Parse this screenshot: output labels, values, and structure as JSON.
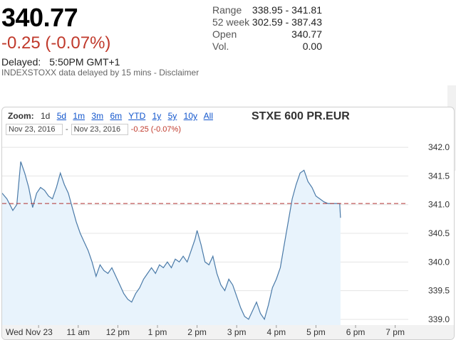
{
  "quote": {
    "price": "340.77",
    "change": "-0.25 (-0.07%)",
    "delayed_label": "Delayed:",
    "delayed_time": "5:50PM GMT+1",
    "source_note": "INDEXSTOXX data delayed by 15 mins - Disclaimer"
  },
  "stats": [
    {
      "label": "Range",
      "value": "338.95 - 341.81"
    },
    {
      "label": "52 week",
      "value": "302.59 - 387.43"
    },
    {
      "label": "Open",
      "value": "340.77"
    },
    {
      "label": "Vol.",
      "value": "0.00"
    }
  ],
  "chart": {
    "title": "STXE 600 PR.EUR",
    "zoom_label": "Zoom:",
    "zoom_options": [
      "1d",
      "5d",
      "1m",
      "3m",
      "6m",
      "YTD",
      "1y",
      "5y",
      "10y",
      "All"
    ],
    "zoom_selected": "1d",
    "start_date": "Nov 23, 2016",
    "end_date": "Nov 23, 2016",
    "range_change": "-0.25 (-0.07%)",
    "colors": {
      "line": "#4a7aa8",
      "fill": "#e8f3fc",
      "ref_line": "#b03030",
      "grid": "#e4e4e4"
    }
  },
  "chart_data": {
    "type": "area",
    "title": "STXE 600 PR.EUR",
    "xlabel": "",
    "ylabel": "",
    "x_ticks": [
      "Wed Nov 23",
      "11 am",
      "12 pm",
      "1 pm",
      "2 pm",
      "3 pm",
      "4 pm",
      "5 pm",
      "6 pm",
      "7 pm"
    ],
    "x_tick_hours": [
      10,
      11,
      12,
      13,
      14,
      15,
      16,
      17,
      18,
      19
    ],
    "y_ticks": [
      "339.0",
      "339.5",
      "340.0",
      "340.5",
      "341.0",
      "341.5",
      "342.0"
    ],
    "y_tick_values": [
      339.0,
      339.5,
      340.0,
      340.5,
      341.0,
      341.5,
      342.0
    ],
    "ylim": [
      338.9,
      342.1
    ],
    "xlim": [
      9.08,
      19.33
    ],
    "reference_value": 341.02,
    "reference_style": "dashed",
    "grid": "horizontal",
    "series": [
      {
        "x": [
          9.08,
          9.2,
          9.35,
          9.45,
          9.55,
          9.65,
          9.75,
          9.85,
          9.95,
          10.05,
          10.15,
          10.25,
          10.35,
          10.45,
          10.55,
          10.65,
          10.75,
          10.85,
          10.95,
          11.05,
          11.15,
          11.25,
          11.35,
          11.45,
          11.55,
          11.65,
          11.75,
          11.85,
          11.95,
          12.05,
          12.15,
          12.25,
          12.35,
          12.45,
          12.55,
          12.65,
          12.75,
          12.85,
          12.95,
          13.05,
          13.15,
          13.25,
          13.35,
          13.45,
          13.55,
          13.65,
          13.75,
          13.85,
          13.95,
          14.0,
          14.1,
          14.2,
          14.3,
          14.4,
          14.5,
          14.6,
          14.7,
          14.8,
          14.9,
          15.0,
          15.1,
          15.2,
          15.3,
          15.4,
          15.5,
          15.6,
          15.7,
          15.8,
          15.9,
          16.0,
          16.1,
          16.2,
          16.3,
          16.4,
          16.5,
          16.6,
          16.7,
          16.8,
          16.9,
          17.0,
          17.1,
          17.2,
          17.3,
          17.4,
          17.5,
          17.6,
          17.62
        ],
        "values": [
          341.2,
          341.1,
          340.9,
          341.0,
          341.75,
          341.55,
          341.3,
          340.95,
          341.2,
          341.3,
          341.25,
          341.15,
          341.1,
          341.3,
          341.55,
          341.35,
          341.2,
          340.95,
          340.7,
          340.5,
          340.35,
          340.2,
          340.0,
          339.75,
          339.95,
          339.85,
          339.8,
          339.9,
          339.75,
          339.6,
          339.45,
          339.35,
          339.3,
          339.45,
          339.55,
          339.7,
          339.8,
          339.9,
          339.8,
          339.95,
          339.9,
          340.0,
          339.9,
          340.05,
          340.0,
          340.1,
          340.0,
          340.2,
          340.4,
          340.55,
          340.3,
          340.0,
          339.95,
          340.1,
          339.8,
          339.6,
          339.5,
          339.7,
          339.6,
          339.4,
          339.2,
          339.05,
          339.0,
          339.15,
          339.3,
          339.1,
          339.0,
          339.25,
          339.55,
          339.7,
          339.9,
          340.3,
          340.7,
          341.1,
          341.35,
          341.55,
          341.6,
          341.4,
          341.3,
          341.15,
          341.1,
          341.05,
          341.02,
          341.02,
          341.02,
          341.02,
          340.77
        ]
      }
    ]
  }
}
